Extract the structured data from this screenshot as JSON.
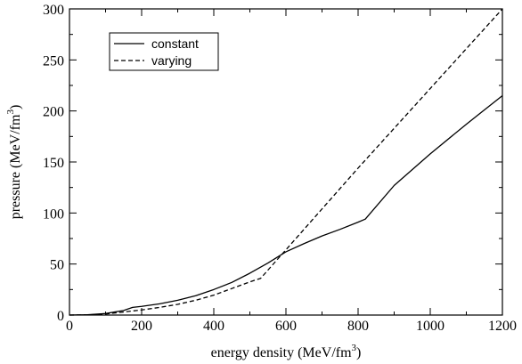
{
  "chart_data": {
    "type": "line",
    "xlabel": "energy density (MeV/fm",
    "xlabel_sup": "3",
    "xlabel_end": ")",
    "ylabel": "pressure (MeV/fm",
    "ylabel_sup": "3",
    "ylabel_end": ")",
    "xlim": [
      0,
      1200
    ],
    "ylim": [
      0,
      300
    ],
    "xticks": [
      0,
      200,
      400,
      600,
      800,
      1000,
      1200
    ],
    "yticks": [
      0,
      50,
      100,
      150,
      200,
      250,
      300
    ],
    "grid": false,
    "legend_position": "top-left",
    "series": [
      {
        "name": "constant",
        "style": "solid",
        "color": "#000000",
        "points": [
          [
            0,
            0
          ],
          [
            50,
            0.3
          ],
          [
            100,
            1.5
          ],
          [
            150,
            4.5
          ],
          [
            175,
            7.5
          ],
          [
            200,
            8.5
          ],
          [
            250,
            11
          ],
          [
            300,
            14.5
          ],
          [
            350,
            19
          ],
          [
            400,
            25
          ],
          [
            450,
            32
          ],
          [
            500,
            41
          ],
          [
            550,
            51
          ],
          [
            600,
            62
          ],
          [
            650,
            70
          ],
          [
            700,
            77.5
          ],
          [
            750,
            84
          ],
          [
            800,
            91
          ],
          [
            820,
            94
          ],
          [
            900,
            127
          ],
          [
            1000,
            158
          ],
          [
            1100,
            187
          ],
          [
            1200,
            215
          ]
        ]
      },
      {
        "name": "varying",
        "style": "dashed",
        "color": "#000000",
        "points": [
          [
            0,
            0
          ],
          [
            50,
            0.2
          ],
          [
            100,
            1
          ],
          [
            150,
            3
          ],
          [
            200,
            5
          ],
          [
            250,
            7.5
          ],
          [
            300,
            10.5
          ],
          [
            350,
            14.5
          ],
          [
            400,
            19.5
          ],
          [
            450,
            26
          ],
          [
            500,
            32.5
          ],
          [
            530,
            36
          ],
          [
            600,
            64
          ],
          [
            700,
            104
          ],
          [
            800,
            144
          ],
          [
            900,
            183
          ],
          [
            1000,
            222
          ],
          [
            1100,
            261
          ],
          [
            1200,
            300
          ]
        ]
      }
    ]
  }
}
